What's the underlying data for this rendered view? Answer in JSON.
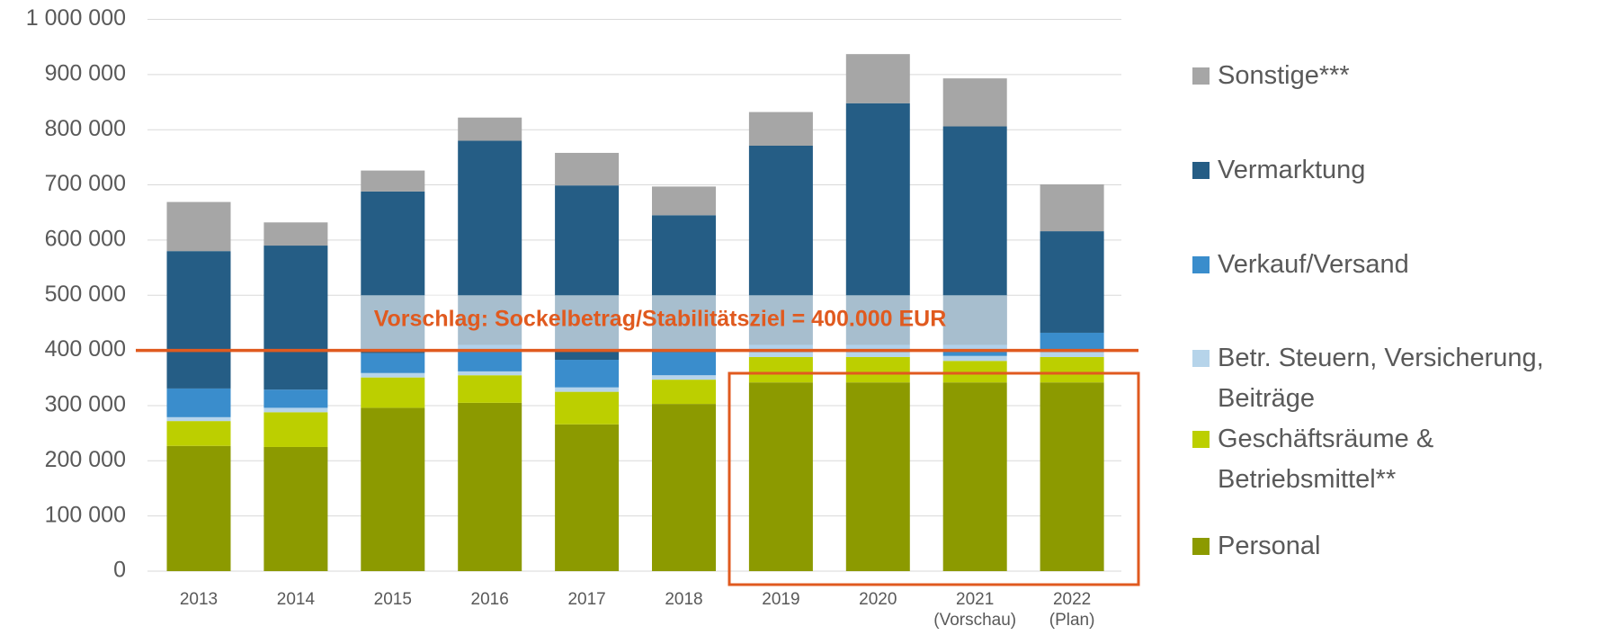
{
  "chart_data": {
    "type": "stacked_bar",
    "categories": [
      "2013",
      "2014",
      "2015",
      "2016",
      "2017",
      "2018",
      "2019",
      "2020",
      "2021\n(Vorschau)",
      "2022\n(Plan)"
    ],
    "series": [
      {
        "name": "Personal",
        "color": "#8c9a00",
        "values": [
          227000,
          225000,
          296000,
          305000,
          266000,
          303000,
          342000,
          342000,
          342000,
          342000
        ]
      },
      {
        "name": "Geschäftsräume & Betriebsmittel**",
        "color": "#bccf00",
        "values": [
          45000,
          63000,
          55000,
          50000,
          59000,
          44000,
          46000,
          46000,
          39000,
          46000
        ]
      },
      {
        "name": "Betr. Steuern, Versicherung, Beiträge",
        "color": "#b6d4ea",
        "values": [
          7000,
          8000,
          8000,
          7000,
          8000,
          8000,
          9000,
          9000,
          9000,
          9000
        ]
      },
      {
        "name": "Verkauf/Versand",
        "color": "#3a8dcc",
        "values": [
          52000,
          33000,
          36000,
          48000,
          50000,
          42000,
          13000,
          13000,
          20000,
          35000
        ]
      },
      {
        "name": "Vermarktung",
        "color": "#255d85",
        "values": [
          249000,
          261000,
          293000,
          370000,
          316000,
          248000,
          361000,
          438000,
          396000,
          184000
        ]
      },
      {
        "name": "Sonstige***",
        "color": "#a6a6a6",
        "values": [
          89000,
          42000,
          38000,
          42000,
          59000,
          52000,
          61000,
          89000,
          87000,
          85000
        ]
      }
    ],
    "ylim": [
      0,
      1000000
    ],
    "yticks": [
      0,
      {
        "value": 100000,
        "label": "100 000"
      },
      {
        "value": 200000,
        "label": "200 000"
      },
      {
        "value": 300000,
        "label": "300 000"
      },
      {
        "value": 400000,
        "label": "400 000"
      },
      {
        "value": 500000,
        "label": "500 000"
      },
      {
        "value": 600000,
        "label": "600 000"
      },
      {
        "value": 700000,
        "label": "700 000"
      },
      {
        "value": 800000,
        "label": "800 000"
      },
      {
        "value": 900000,
        "label": "900 000"
      },
      {
        "value": 1000000,
        "label": "1 000 000"
      }
    ],
    "grid": true,
    "reference_line": 400000,
    "annotation": "Vorschlag: Sockelbetrag/Stabilitätsziel = 400.000 EUR",
    "legend": "right"
  }
}
